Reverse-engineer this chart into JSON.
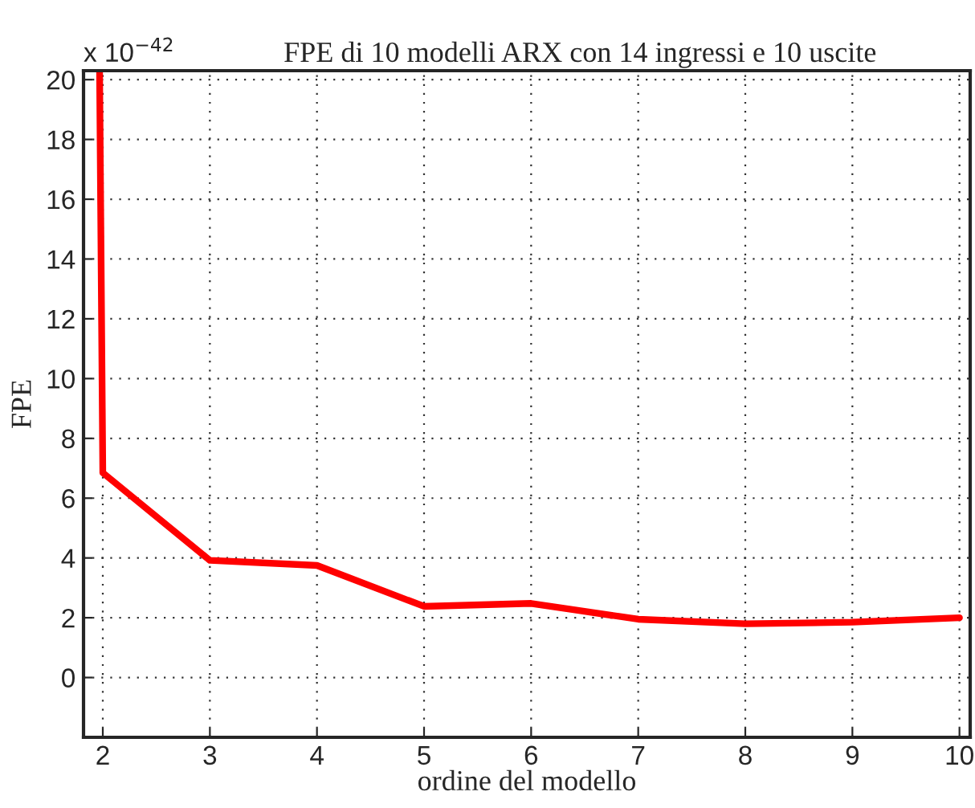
{
  "chart_data": {
    "type": "line",
    "title": "FPE di 10 modelli ARX con 14 ingressi e 10 uscite",
    "xlabel": "ordine del modello",
    "ylabel": "FPE",
    "annotations": [
      "x 10$^{−42}$"
    ],
    "x": [
      1.97,
      2,
      3,
      4,
      5,
      6,
      7,
      8,
      9,
      10
    ],
    "series": [
      {
        "color": "#ff0000",
        "values": [
          20.3,
          6.85,
          3.92,
          3.75,
          2.38,
          2.48,
          1.95,
          1.8,
          1.85,
          2.0
        ]
      }
    ],
    "xlim": [
      1.82,
      10.1
    ],
    "ylim": [
      -2,
      20.3
    ],
    "xticks": [
      2,
      3,
      4,
      5,
      6,
      7,
      8,
      9,
      10
    ],
    "yticks": [
      0,
      2,
      4,
      6,
      8,
      10,
      12,
      14,
      16,
      18,
      20
    ],
    "grid": true,
    "legend": false,
    "marker": "none",
    "line_style": "solid"
  }
}
